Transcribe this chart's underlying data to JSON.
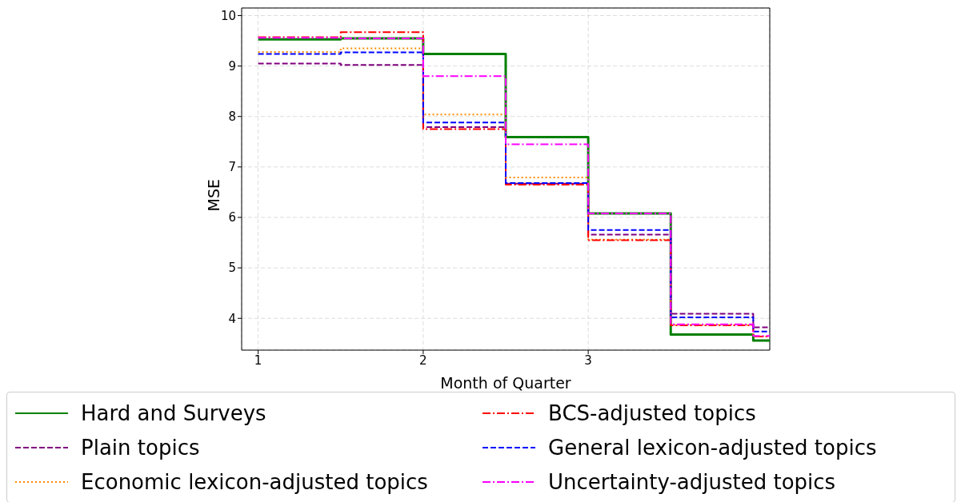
{
  "chart_data": {
    "type": "step",
    "xlabel": "Month of Quarter",
    "ylabel": "MSE",
    "x": [
      1,
      1.5,
      2,
      2.5,
      3,
      3.5,
      4,
      4.1
    ],
    "xlim": [
      0.9,
      4.1
    ],
    "xticks": [
      1,
      2,
      3
    ],
    "ylim": [
      3.37,
      10.15
    ],
    "yticks": [
      4,
      5,
      6,
      7,
      8,
      9,
      10
    ],
    "grid": true,
    "legend": "bottom",
    "series": [
      {
        "name": "Hard and Surveys",
        "color": "#008000",
        "line_style": "solid",
        "values": [
          9.53,
          9.55,
          9.24,
          7.59,
          6.08,
          3.68,
          3.56,
          3.56
        ]
      },
      {
        "name": "Plain topics",
        "color": "#800080",
        "line_style": "dashed",
        "values": [
          9.05,
          9.02,
          7.79,
          6.67,
          5.66,
          4.09,
          3.82,
          3.82
        ]
      },
      {
        "name": "Economic lexicon-adjusted topics",
        "color": "#ff8c00",
        "line_style": "dotted",
        "values": [
          9.28,
          9.35,
          8.04,
          6.79,
          5.56,
          3.87,
          3.64,
          3.64
        ]
      },
      {
        "name": "BCS-adjusted topics",
        "color": "#ff0000",
        "line_style": "dashdot",
        "values": [
          9.57,
          9.67,
          7.75,
          6.65,
          5.55,
          3.86,
          3.64,
          3.64
        ]
      },
      {
        "name": "General lexicon-adjusted topics",
        "color": "#0000ff",
        "line_style": "dashed",
        "values": [
          9.24,
          9.27,
          7.88,
          6.68,
          5.75,
          4.02,
          3.74,
          3.74
        ]
      },
      {
        "name": "Uncertainty-adjusted topics",
        "color": "#ff00ff",
        "line_style": "dashdot",
        "values": [
          9.56,
          9.55,
          8.8,
          7.45,
          6.08,
          3.88,
          3.65,
          3.65
        ]
      }
    ]
  }
}
